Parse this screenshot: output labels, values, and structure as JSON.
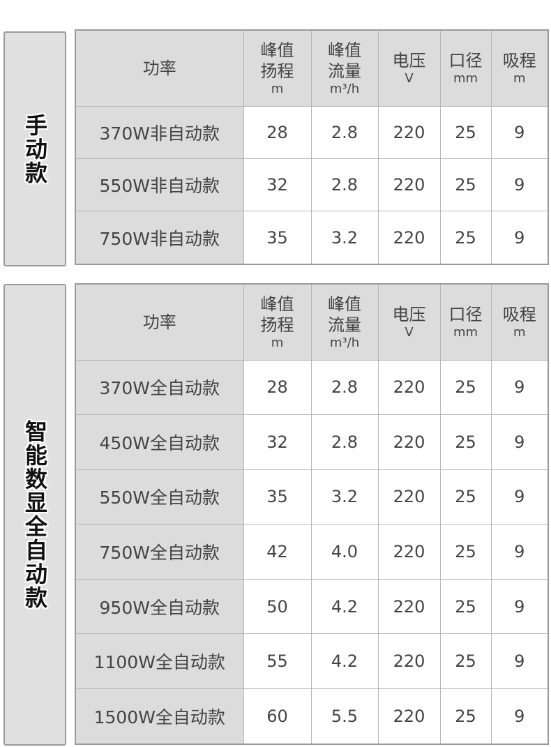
{
  "headers": [
    {
      "lines": [
        "功率"
      ],
      "unit": ""
    },
    {
      "lines": [
        "峰值",
        "扬程"
      ],
      "unit": "m"
    },
    {
      "lines": [
        "峰值",
        "流量"
      ],
      "unit": "m³/h"
    },
    {
      "lines": [
        "电压"
      ],
      "unit": "V"
    },
    {
      "lines": [
        "口径"
      ],
      "unit": "mm"
    },
    {
      "lines": [
        "吸程"
      ],
      "unit": "m"
    }
  ],
  "sections": [
    {
      "label": "手动款",
      "rows": [
        [
          "370W非自动款",
          "28",
          "2.8",
          "220",
          "25",
          "9"
        ],
        [
          "550W非自动款",
          "32",
          "2.8",
          "220",
          "25",
          "9"
        ],
        [
          "750W非自动款",
          "35",
          "3.2",
          "220",
          "25",
          "9"
        ]
      ]
    },
    {
      "label": "智能数显全自动款",
      "rows": [
        [
          "370W全自动款",
          "28",
          "2.8",
          "220",
          "25",
          "9"
        ],
        [
          "450W全自动款",
          "32",
          "2.8",
          "220",
          "25",
          "9"
        ],
        [
          "550W全自动款",
          "35",
          "3.2",
          "220",
          "25",
          "9"
        ],
        [
          "750W全自动款",
          "42",
          "4.0",
          "220",
          "25",
          "9"
        ],
        [
          "950W全自动款",
          "50",
          "4.2",
          "220",
          "25",
          "9"
        ],
        [
          "1100W全自动款",
          "55",
          "4.2",
          "220",
          "25",
          "9"
        ],
        [
          "1500W全自动款",
          "60",
          "5.5",
          "220",
          "25",
          "9"
        ]
      ]
    }
  ]
}
